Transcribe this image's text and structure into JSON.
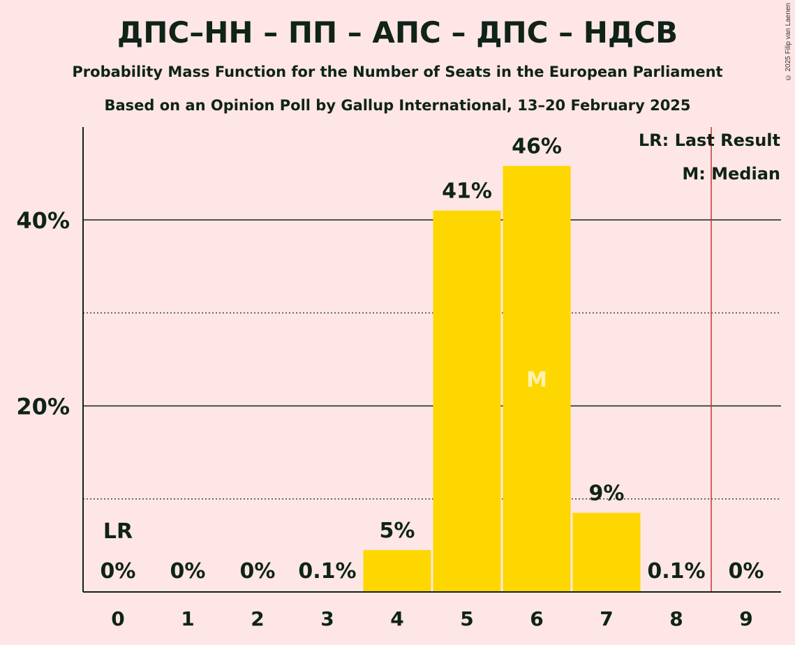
{
  "title": "ДПС–НН – ПП – АПС – ДПС – НДСВ",
  "subtitle": "Probability Mass Function for the Number of Seats in the European Parliament",
  "subtitle2": "Based on an Opinion Poll by Gallup International, 13–20 February 2025",
  "copyright": "© 2025 Filip van Laenen",
  "legend": {
    "last_result": "LR: Last Result",
    "median": "M: Median"
  },
  "colors": {
    "background": "#FFE6E6",
    "bar": "#FFD700",
    "last_result_line": "#C0392B",
    "text": "#0F2318",
    "median_text": "#FFF2B3"
  },
  "chart_data": {
    "type": "bar",
    "categories": [
      "0",
      "1",
      "2",
      "3",
      "4",
      "5",
      "6",
      "7",
      "8",
      "9"
    ],
    "values": [
      0,
      0,
      0,
      0.1,
      4.5,
      41,
      45.8,
      8.5,
      0.1,
      0
    ],
    "value_labels": [
      "0%",
      "0%",
      "0%",
      "0.1%",
      "5%",
      "41%",
      "46%",
      "9%",
      "0.1%",
      "0%"
    ],
    "y_ticks": [
      {
        "value": 20,
        "label": "20%"
      },
      {
        "value": 40,
        "label": "40%"
      }
    ],
    "y_minor_gridlines": [
      10,
      30
    ],
    "ylim": [
      0,
      50
    ],
    "last_result": {
      "seats": 0,
      "label": "LR",
      "line_between": [
        8,
        9
      ]
    },
    "median": {
      "seats": 6,
      "label": "M"
    },
    "grid": true,
    "legend_position": "top-right"
  }
}
